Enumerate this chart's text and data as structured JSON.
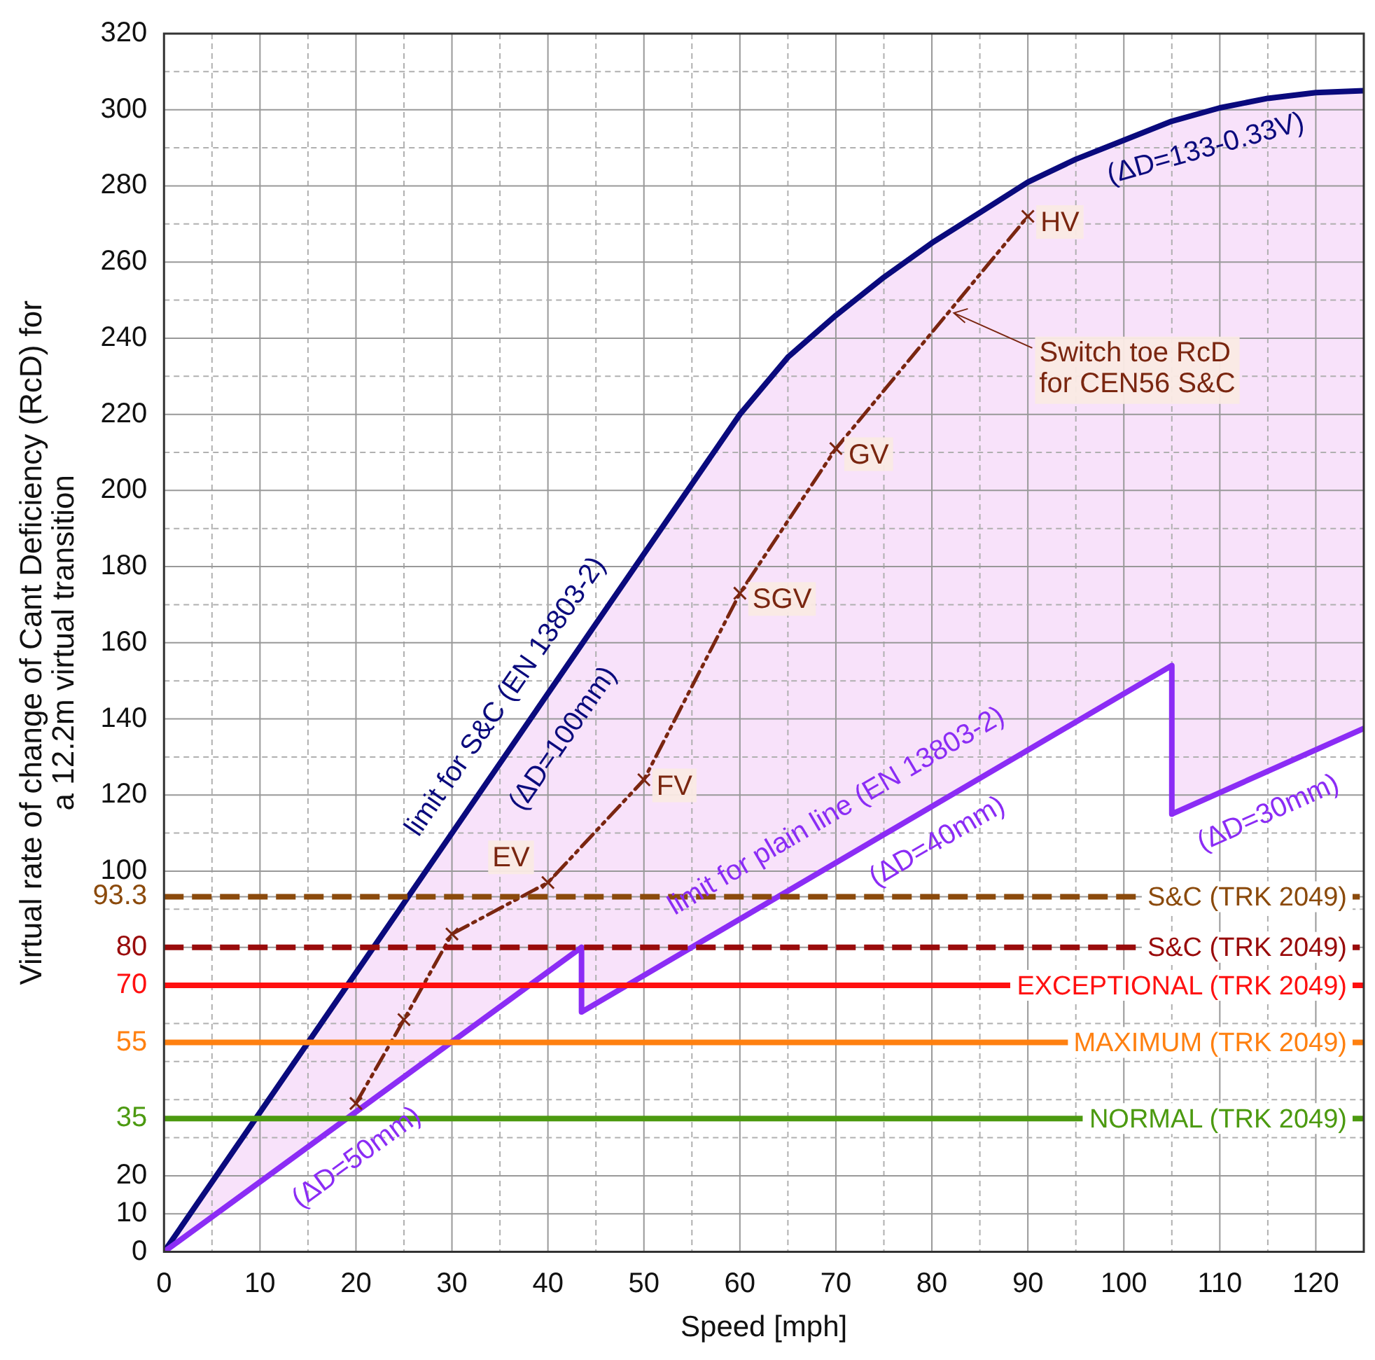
{
  "chart_data": {
    "type": "line",
    "xlabel": "Speed [mph]",
    "ylabel": "Virtual rate of change of Cant Deficiency (RcD) for\na 12.2m virtual transition",
    "xlim": [
      0,
      125
    ],
    "ylim": [
      0,
      320
    ],
    "xticks": [
      0,
      {
        "value": 5,
        "label": null
      },
      10,
      {
        "value": 15,
        "label": null
      },
      20,
      {
        "value": 25,
        "label": null
      },
      30,
      {
        "value": 35,
        "label": null
      },
      40,
      {
        "value": 45,
        "label": null
      },
      50,
      {
        "value": 55,
        "label": null
      },
      60,
      {
        "value": 65,
        "label": null
      },
      70,
      {
        "value": 75,
        "label": null
      },
      80,
      {
        "value": 85,
        "label": null
      },
      90,
      {
        "value": 95,
        "label": null
      },
      100,
      {
        "value": 105,
        "label": null
      },
      110,
      {
        "value": 115,
        "label": null
      },
      120
    ],
    "yticks": [
      0,
      10,
      20,
      {
        "value": 30,
        "label": null
      },
      35,
      {
        "value": 40,
        "label": null
      },
      {
        "value": 50,
        "label": null
      },
      55,
      {
        "value": 60,
        "label": null
      },
      70,
      80,
      {
        "value": 90,
        "label": null
      },
      93.3,
      100,
      {
        "value": 110,
        "label": null
      },
      120,
      {
        "value": 130,
        "label": null
      },
      140,
      {
        "value": 150,
        "label": null
      },
      160,
      {
        "value": 170,
        "label": null
      },
      180,
      {
        "value": 190,
        "label": null
      },
      200,
      {
        "value": 210,
        "label": null
      },
      220,
      {
        "value": 230,
        "label": null
      },
      240,
      {
        "value": 250,
        "label": null
      },
      260,
      {
        "value": 270,
        "label": null
      },
      280,
      {
        "value": 290,
        "label": null
      },
      300,
      {
        "value": 310,
        "label": null
      },
      320
    ],
    "grid": true,
    "legend": false,
    "series": [
      {
        "color": "#0a0a7d",
        "marker": "none",
        "line_style": "solid",
        "x": [
          0,
          20,
          43.5,
          43.5,
          60,
          65,
          70,
          75,
          80,
          85,
          90,
          95,
          100,
          105,
          105,
          110,
          115,
          120,
          125
        ],
        "values": [
          0,
          73.3,
          159.5,
          159.5,
          220,
          235,
          246,
          256,
          265,
          273,
          281,
          287,
          292,
          297,
          297,
          300.5,
          303,
          304.5,
          305
        ],
        "upper": [
          0,
          73.3,
          159.5,
          159.5,
          220,
          235,
          246,
          256,
          265,
          273,
          281,
          287,
          292,
          297,
          297,
          300.5,
          303,
          304.5,
          305
        ],
        "lower": [
          0,
          36.8,
          80,
          63,
          87.4,
          94.8,
          102.2,
          109.6,
          117,
          124.4,
          131.8,
          139.2,
          146.6,
          154,
          115,
          120.6,
          126.3,
          131.9,
          137.5
        ]
      },
      {
        "color": "#8b2cf5",
        "marker": "none",
        "line_style": "solid",
        "x": [
          0,
          43.5,
          43.5,
          105,
          105,
          125
        ],
        "values": [
          0,
          80,
          63,
          154,
          115,
          137.5
        ]
      },
      {
        "color": "#7a2610",
        "marker": "cross",
        "line_style": "dashed",
        "x": [
          20,
          25,
          30,
          40,
          50,
          60,
          70,
          90
        ],
        "values": [
          39,
          61,
          83.5,
          97,
          124,
          173,
          211,
          272
        ]
      }
    ],
    "ref_lines": [
      {
        "axis": "y",
        "value": 93.3,
        "label": "S&C (TRK 2049)",
        "color": "#8b4a0c",
        "line_style": "dashed"
      },
      {
        "axis": "y",
        "value": 80,
        "label": "S&C (TRK 2049)",
        "color": "#990b0b",
        "line_style": "dashed"
      },
      {
        "axis": "y",
        "value": 70,
        "label": "EXCEPTIONAL (TRK 2049)",
        "color": "#ff1010",
        "line_style": "solid"
      },
      {
        "axis": "y",
        "value": 55,
        "label": "MAXIMUM (TRK 2049)",
        "color": "#ff8010",
        "line_style": "solid"
      },
      {
        "axis": "y",
        "value": 35,
        "label": "NORMAL (TRK 2049)",
        "color": "#4c9a10",
        "line_style": "solid"
      }
    ],
    "annotations": [
      "limit for S&C (EN 13803-2)",
      "(ΔD=100mm)",
      "limit for plain line (EN 13803-2)",
      "(ΔD=40mm)",
      "(ΔD=50mm)",
      "(ΔD=30mm)",
      "(ΔD=133-0.33V)",
      {
        "text": "EV",
        "x": 40,
        "y": 97
      },
      {
        "text": "FV",
        "x": 50,
        "y": 124
      },
      {
        "text": "SGV",
        "x": 60,
        "y": 173
      },
      {
        "text": "GV",
        "x": 70,
        "y": 211
      },
      {
        "text": "HV",
        "x": 90,
        "y": 272
      },
      {
        "text": "Switch toe RcD\nfor CEN56 S&C",
        "x": 82,
        "y": 247
      }
    ]
  }
}
